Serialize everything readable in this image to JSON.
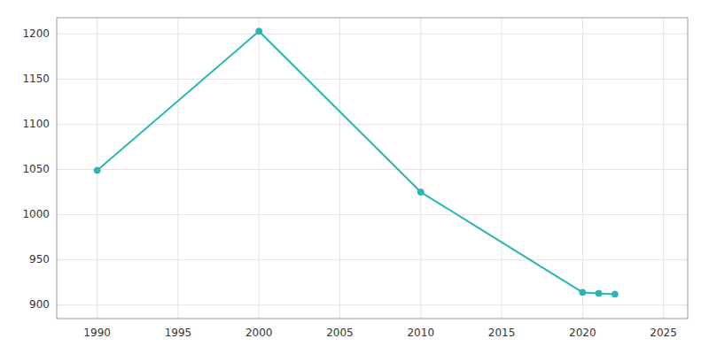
{
  "chart_data": {
    "type": "line",
    "x": [
      1990,
      2000,
      2010,
      2020,
      2021,
      2022
    ],
    "values": [
      1049,
      1203,
      1025,
      914,
      913,
      912
    ],
    "color": "#2ab5b5",
    "marker": "circle",
    "xlim": [
      1987.5,
      2026.5
    ],
    "ylim": [
      885,
      1218
    ],
    "xticks": [
      1990,
      1995,
      2000,
      2005,
      2010,
      2015,
      2020,
      2025
    ],
    "yticks": [
      900,
      950,
      1000,
      1050,
      1100,
      1150,
      1200
    ],
    "grid": true
  }
}
